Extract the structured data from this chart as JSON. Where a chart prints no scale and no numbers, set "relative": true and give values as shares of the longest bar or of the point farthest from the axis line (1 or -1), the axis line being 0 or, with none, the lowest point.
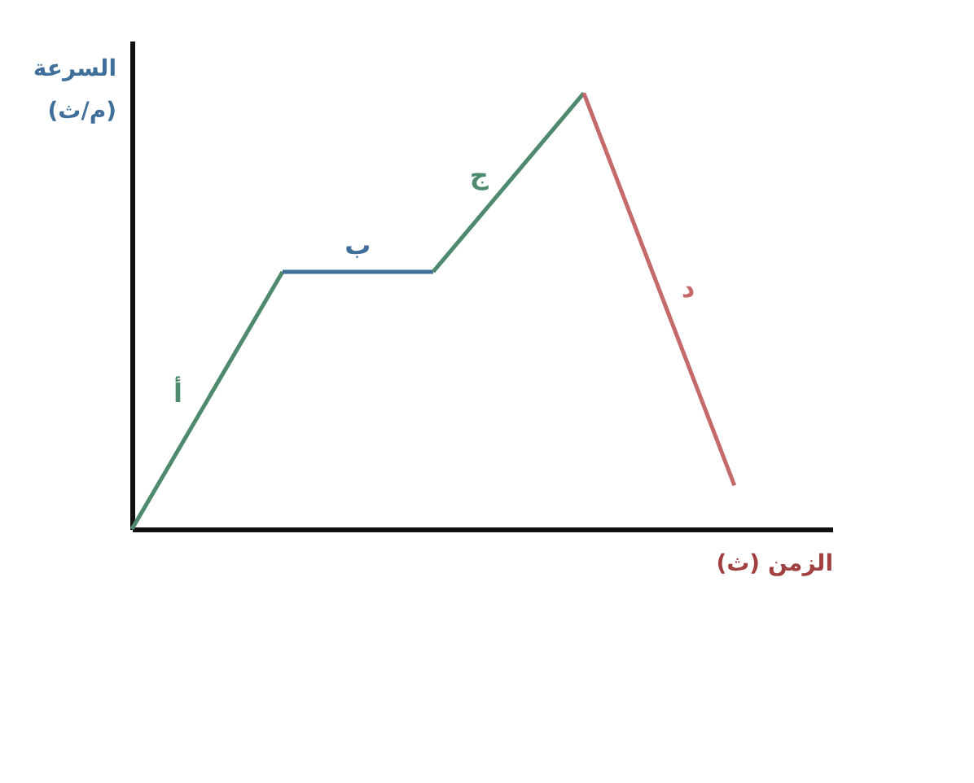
{
  "chart_data": {
    "type": "line",
    "relative": true,
    "xlabel": "الزمن (ث)",
    "ylabel": "السرعة (م/ث)",
    "categories": [
      null,
      null,
      null,
      null,
      null
    ],
    "series": [
      {
        "name": "أ",
        "color": "#4f8a6e",
        "values": [
          0,
          0.59,
          null,
          null,
          null
        ]
      },
      {
        "name": "ب",
        "color": "#3f6f9a",
        "values": [
          null,
          0.59,
          0.59,
          null,
          null
        ]
      },
      {
        "name": "ج",
        "color": "#4f8a6e",
        "values": [
          null,
          null,
          0.59,
          1,
          null
        ]
      },
      {
        "name": "د",
        "color": "#c46a6a",
        "values": [
          null,
          null,
          null,
          1,
          0.1
        ]
      }
    ],
    "legend": false,
    "grid": false,
    "marker": "none",
    "line_style": "solid"
  }
}
